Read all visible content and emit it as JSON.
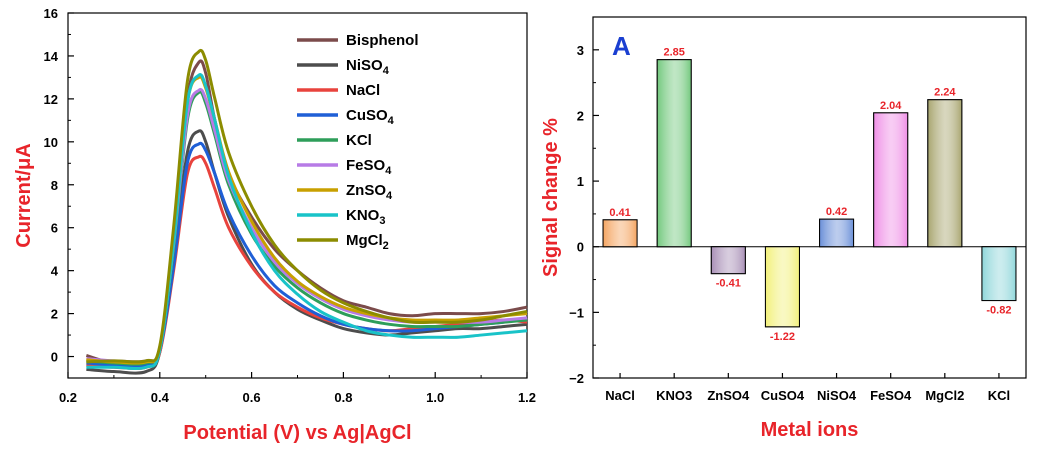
{
  "chart_data": [
    {
      "type": "line",
      "xlabel": "Potential (V) vs Ag|AgCl",
      "ylabel": "Current/μA",
      "axis_label_color": "#e8242a",
      "xlim": [
        0.2,
        1.2
      ],
      "ylim": [
        -1,
        16
      ],
      "xticks": [
        "0.2",
        "0.4",
        "0.6",
        "0.8",
        "1.0",
        "1.2"
      ],
      "yticks": [
        "0",
        "2",
        "4",
        "6",
        "8",
        "10",
        "12",
        "14",
        "16"
      ],
      "legend_position": "top-right",
      "series": [
        {
          "name": "Bisphenol",
          "base": "Bisphenol",
          "sub": "",
          "color": "#7b4b4b",
          "x": [
            0.24,
            0.3,
            0.37,
            0.4,
            0.43,
            0.46,
            0.485,
            0.5,
            0.52,
            0.55,
            0.6,
            0.65,
            0.7,
            0.75,
            0.8,
            0.85,
            0.9,
            0.95,
            1.0,
            1.05,
            1.1,
            1.15,
            1.2
          ],
          "y": [
            0.05,
            -0.3,
            -0.25,
            0.4,
            5.5,
            12.0,
            13.7,
            13.2,
            11.0,
            8.5,
            6.5,
            5.0,
            4.0,
            3.2,
            2.6,
            2.3,
            2.0,
            1.9,
            2.0,
            2.0,
            2.0,
            2.1,
            2.3
          ]
        },
        {
          "name": "NiSO4",
          "base": "NiSO",
          "sub": "4",
          "color": "#4d4d4d",
          "x": [
            0.24,
            0.3,
            0.37,
            0.4,
            0.43,
            0.46,
            0.485,
            0.5,
            0.52,
            0.55,
            0.6,
            0.65,
            0.7,
            0.75,
            0.8,
            0.85,
            0.9,
            0.95,
            1.0,
            1.05,
            1.1,
            1.15,
            1.2
          ],
          "y": [
            -0.6,
            -0.7,
            -0.7,
            0.2,
            4.5,
            9.5,
            10.5,
            10.0,
            8.5,
            6.5,
            4.3,
            3.0,
            2.2,
            1.7,
            1.3,
            1.1,
            1.0,
            1.1,
            1.2,
            1.3,
            1.3,
            1.4,
            1.5
          ]
        },
        {
          "name": "NaCl",
          "base": "NaCl",
          "sub": "",
          "color": "#e8433d",
          "x": [
            0.24,
            0.3,
            0.37,
            0.4,
            0.43,
            0.46,
            0.485,
            0.5,
            0.52,
            0.55,
            0.6,
            0.65,
            0.7,
            0.75,
            0.8,
            0.85,
            0.9,
            0.95,
            1.0,
            1.05,
            1.1,
            1.15,
            1.2
          ],
          "y": [
            -0.4,
            -0.5,
            -0.5,
            0.2,
            4.0,
            8.5,
            9.3,
            9.0,
            7.8,
            6.0,
            4.2,
            3.0,
            2.3,
            1.8,
            1.5,
            1.3,
            1.2,
            1.3,
            1.4,
            1.5,
            1.6,
            1.7,
            1.6
          ]
        },
        {
          "name": "CuSO4",
          "base": "CuSO",
          "sub": "4",
          "color": "#1f5fd6",
          "x": [
            0.24,
            0.3,
            0.37,
            0.4,
            0.43,
            0.46,
            0.485,
            0.5,
            0.52,
            0.55,
            0.6,
            0.65,
            0.7,
            0.75,
            0.8,
            0.85,
            0.9,
            0.95,
            1.0,
            1.05,
            1.1,
            1.15,
            1.2
          ],
          "y": [
            -0.3,
            -0.4,
            -0.4,
            0.3,
            4.2,
            9.0,
            9.9,
            9.6,
            8.5,
            6.7,
            4.7,
            3.3,
            2.5,
            1.9,
            1.5,
            1.3,
            1.2,
            1.2,
            1.3,
            1.4,
            1.5,
            1.6,
            1.8
          ]
        },
        {
          "name": "KCl",
          "base": "KCl",
          "sub": "",
          "color": "#2e9e5a",
          "x": [
            0.24,
            0.3,
            0.37,
            0.4,
            0.43,
            0.46,
            0.485,
            0.5,
            0.52,
            0.55,
            0.6,
            0.65,
            0.7,
            0.75,
            0.8,
            0.85,
            0.9,
            0.95,
            1.0,
            1.05,
            1.1,
            1.15,
            1.2
          ],
          "y": [
            -0.2,
            -0.3,
            -0.3,
            0.4,
            5.0,
            11.0,
            12.3,
            11.8,
            10.3,
            8.0,
            5.7,
            4.2,
            3.2,
            2.5,
            2.0,
            1.7,
            1.5,
            1.4,
            1.4,
            1.4,
            1.5,
            1.6,
            1.7
          ]
        },
        {
          "name": "FeSO4",
          "base": "FeSO",
          "sub": "4",
          "color": "#b77be6",
          "x": [
            0.24,
            0.3,
            0.37,
            0.4,
            0.43,
            0.46,
            0.485,
            0.5,
            0.52,
            0.55,
            0.6,
            0.65,
            0.7,
            0.75,
            0.8,
            0.85,
            0.9,
            0.95,
            1.0,
            1.05,
            1.1,
            1.15,
            1.2
          ],
          "y": [
            -0.1,
            -0.2,
            -0.2,
            0.4,
            5.2,
            11.2,
            12.4,
            12.0,
            10.5,
            8.2,
            6.0,
            4.4,
            3.4,
            2.7,
            2.2,
            1.9,
            1.7,
            1.6,
            1.6,
            1.6,
            1.6,
            1.7,
            1.8
          ]
        },
        {
          "name": "ZnSO4",
          "base": "ZnSO",
          "sub": "4",
          "color": "#c8a000",
          "x": [
            0.24,
            0.3,
            0.37,
            0.4,
            0.43,
            0.46,
            0.485,
            0.5,
            0.52,
            0.55,
            0.6,
            0.65,
            0.7,
            0.75,
            0.8,
            0.85,
            0.9,
            0.95,
            1.0,
            1.05,
            1.1,
            1.15,
            1.2
          ],
          "y": [
            -0.15,
            -0.25,
            -0.25,
            0.4,
            5.4,
            11.8,
            13.0,
            12.5,
            11.0,
            8.6,
            6.3,
            4.6,
            3.5,
            2.8,
            2.3,
            2.0,
            1.8,
            1.7,
            1.7,
            1.7,
            1.8,
            1.9,
            2.0
          ]
        },
        {
          "name": "KNO3",
          "base": "KNO",
          "sub": "3",
          "color": "#19c3c8",
          "x": [
            0.24,
            0.3,
            0.37,
            0.4,
            0.43,
            0.46,
            0.485,
            0.5,
            0.52,
            0.55,
            0.6,
            0.65,
            0.7,
            0.75,
            0.8,
            0.85,
            0.9,
            0.95,
            1.0,
            1.05,
            1.1,
            1.15,
            1.2
          ],
          "y": [
            -0.5,
            -0.5,
            -0.5,
            0.3,
            5.3,
            11.8,
            13.1,
            12.6,
            11.0,
            8.4,
            5.8,
            4.0,
            2.9,
            2.1,
            1.6,
            1.2,
            1.0,
            0.9,
            0.9,
            0.9,
            1.0,
            1.1,
            1.2
          ]
        },
        {
          "name": "MgCl2",
          "base": "MgCl",
          "sub": "2",
          "color": "#8c8c00",
          "x": [
            0.24,
            0.3,
            0.37,
            0.4,
            0.43,
            0.46,
            0.485,
            0.5,
            0.52,
            0.55,
            0.6,
            0.65,
            0.7,
            0.75,
            0.8,
            0.85,
            0.9,
            0.95,
            1.0,
            1.05,
            1.1,
            1.15,
            1.2
          ],
          "y": [
            -0.25,
            -0.2,
            -0.2,
            0.5,
            6.0,
            12.8,
            14.2,
            13.8,
            12.0,
            9.5,
            7.0,
            5.2,
            4.0,
            3.1,
            2.5,
            2.1,
            1.8,
            1.6,
            1.6,
            1.6,
            1.7,
            1.9,
            2.1
          ]
        }
      ]
    },
    {
      "type": "bar",
      "panel_label": "A",
      "xlabel": "Metal ions",
      "ylabel": "Signal change %",
      "axis_label_color": "#e8242a",
      "ylim": [
        -2,
        3.5
      ],
      "yticks": [
        "−2",
        "−1",
        "0",
        "1",
        "2",
        "3"
      ],
      "categories": [
        "NaCl",
        "KNO3",
        "ZnSO4",
        "CuSO4",
        "NiSO4",
        "FeSO4",
        "MgCl2",
        "KCl"
      ],
      "values": [
        0.41,
        2.85,
        -0.41,
        -1.22,
        0.42,
        2.04,
        2.24,
        -0.82
      ],
      "value_labels": [
        "0.41",
        "2.85",
        "-0.41",
        "-1.22",
        "0.42",
        "2.04",
        "2.24",
        "-0.82"
      ],
      "colors": [
        "#f4a460",
        "#72c87d",
        "#a88fb6",
        "#f2f07a",
        "#6a8fd8",
        "#ef8fe6",
        "#a8a56f",
        "#8fd6da"
      ],
      "value_label_color": "#e8242a"
    }
  ]
}
